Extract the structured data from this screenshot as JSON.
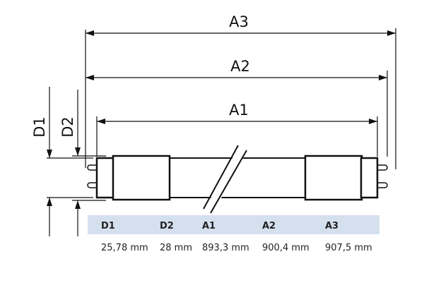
{
  "dimension_labels": {
    "a3": "A3",
    "a2": "A2",
    "a1": "A1",
    "d1": "D1",
    "d2": "D2"
  },
  "table": {
    "headers": [
      "D1",
      "D2",
      "A1",
      "A2",
      "A3"
    ],
    "values": [
      "25,78 mm",
      "28 mm",
      "893,3 mm",
      "900,4 mm",
      "907,5 mm"
    ]
  },
  "colors": {
    "header_band": "#d5e0ef",
    "line": "#111111"
  }
}
